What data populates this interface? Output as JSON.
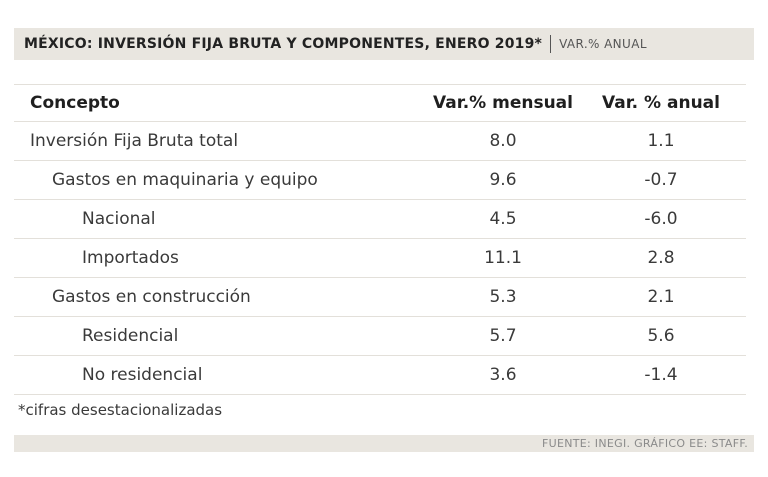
{
  "header": {
    "title": "MÉXICO: INVERSIÓN FIJA BRUTA Y COMPONENTES, ENERO 2019*",
    "subtitle": "VAR.% ANUAL"
  },
  "chart_data": {
    "type": "table",
    "columns": [
      "Concepto",
      "Var.% mensual",
      "Var. % anual"
    ],
    "rows": [
      {
        "label": "Inversión Fija Bruta total",
        "level": 0,
        "mensual": "8.0",
        "anual": "1.1"
      },
      {
        "label": "Gastos en maquinaria y equipo",
        "level": 1,
        "mensual": "9.6",
        "anual": "-0.7"
      },
      {
        "label": "Nacional",
        "level": 2,
        "mensual": "4.5",
        "anual": "-6.0"
      },
      {
        "label": "Importados",
        "level": 2,
        "mensual": "11.1",
        "anual": "2.8"
      },
      {
        "label": "Gastos en construcción",
        "level": 1,
        "mensual": "5.3",
        "anual": "2.1"
      },
      {
        "label": "Residencial",
        "level": 2,
        "mensual": "5.7",
        "anual": "5.6"
      },
      {
        "label": "No residencial",
        "level": 2,
        "mensual": "3.6",
        "anual": "-1.4"
      }
    ]
  },
  "footnote": "*cifras desestacionalizadas",
  "source": "FUENTE: INEGI. GRÁFICO EE: STAFF."
}
